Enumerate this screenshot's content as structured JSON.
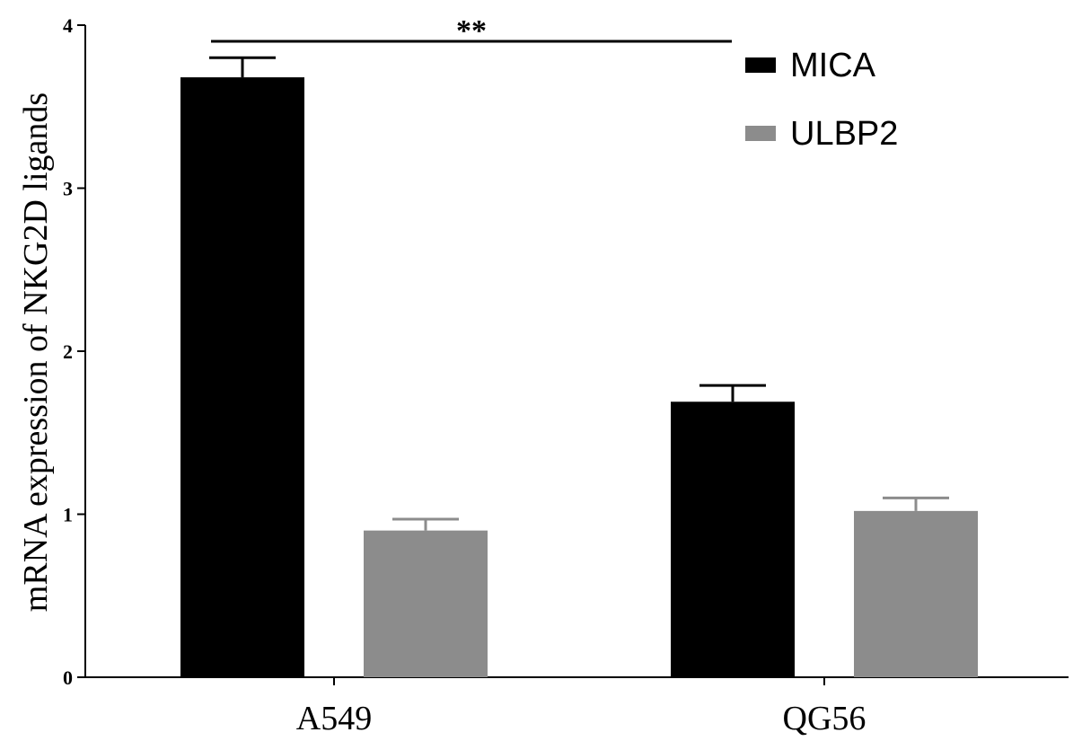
{
  "chart_data": {
    "type": "bar",
    "categories": [
      "A549",
      "QG56"
    ],
    "series": [
      {
        "name": "MICA",
        "color": "#000000",
        "values": [
          3.68,
          1.69
        ],
        "errors": [
          0.12,
          0.1
        ]
      },
      {
        "name": "ULBP2",
        "color": "#8c8c8c",
        "values": [
          0.9,
          1.02
        ],
        "errors": [
          0.07,
          0.08
        ]
      }
    ],
    "ylabel": "mRNA expression of NKG2D ligands",
    "xlabel": "",
    "ylim": [
      0,
      4
    ],
    "yticks": [
      0,
      1,
      2,
      3,
      4
    ],
    "legend_position": "top-right",
    "grid": false,
    "annotations": [
      {
        "text": "**",
        "from": "A549 MICA",
        "to": "QG56 MICA"
      }
    ]
  }
}
